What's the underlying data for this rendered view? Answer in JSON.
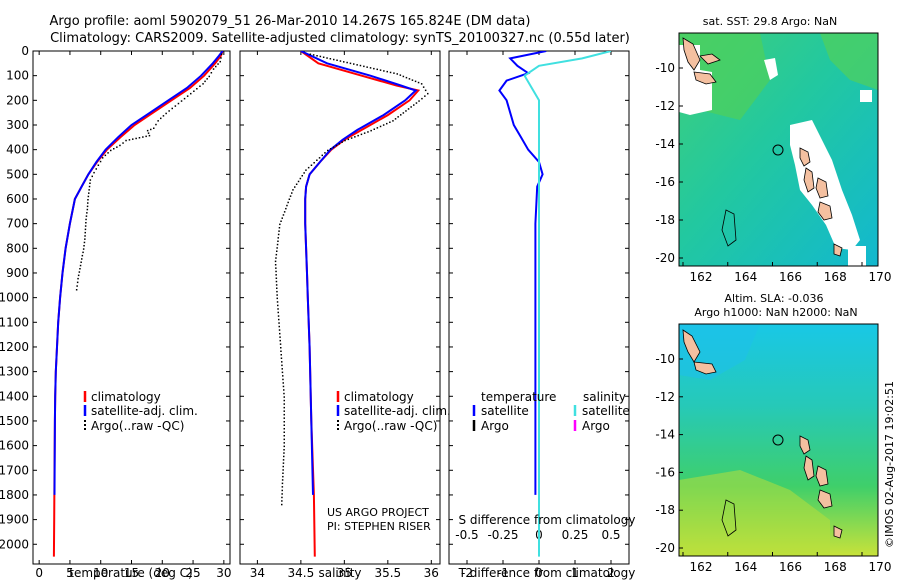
{
  "header": {
    "title_line1": "Argo profile: aoml 5902079_51 26-Mar-2010 14.267S 165.824E (DM data)",
    "title_line2": "Climatology: CARS2009. Satellite-adjusted climatology: synTS_20100327.nc (0.55d later)"
  },
  "footer": {
    "project": "US ARGO PROJECT",
    "pi": "PI: STEPHEN RISER",
    "watermark": "©IMOS 02-Aug-2017 19:02:51"
  },
  "colors": {
    "climatology": "#ff0000",
    "satellite": "#0000ff",
    "argo": "#000000",
    "sal_satellite": "#00e0e0",
    "sal_argo": "#ff00ff"
  },
  "chart_data": [
    {
      "id": "temperature",
      "type": "line",
      "xlabel": "temperature (deg C)",
      "ylabel": "",
      "xlim": [
        -1,
        31
      ],
      "ylim": [
        2080,
        0
      ],
      "xticks": [
        "0",
        "5",
        "10",
        "15",
        "20",
        "25",
        "30"
      ],
      "xtick_values": [
        0,
        5,
        10,
        15,
        20,
        25,
        30
      ],
      "yticks": [
        "0",
        "100",
        "200",
        "300",
        "400",
        "500",
        "600",
        "700",
        "800",
        "900",
        "1000",
        "1100",
        "1200",
        "1300",
        "1400",
        "1500",
        "1600",
        "1700",
        "1800",
        "1900",
        "2000"
      ],
      "ytick_values": [
        0,
        100,
        200,
        300,
        400,
        500,
        600,
        700,
        800,
        900,
        1000,
        1100,
        1200,
        1300,
        1400,
        1500,
        1600,
        1700,
        1800,
        1900,
        2000
      ],
      "legend": [
        "climatology",
        "satellite-adj. clim.",
        "Argo(..raw -QC)"
      ],
      "series": [
        {
          "name": "climatology",
          "style": "line",
          "color": "#ff0000",
          "x": [
            29.8,
            29.5,
            28.6,
            26.8,
            24.5,
            21.5,
            18.5,
            15.5,
            13.2,
            11,
            9.4,
            8,
            6.9,
            5.8,
            5,
            4.3,
            3.8,
            3.4,
            3.1,
            2.9,
            2.7,
            2.6,
            2.55,
            2.5,
            2.45,
            2.4
          ],
          "y": [
            0,
            20,
            50,
            100,
            150,
            200,
            250,
            300,
            350,
            400,
            450,
            500,
            550,
            600,
            700,
            800,
            900,
            1000,
            1100,
            1200,
            1300,
            1400,
            1500,
            1700,
            1900,
            2050
          ]
        },
        {
          "name": "satellite-adj. clim.",
          "style": "line",
          "color": "#0000ff",
          "x": [
            29.8,
            29.2,
            28.2,
            26.3,
            24,
            21,
            18,
            15,
            12.8,
            10.8,
            9.3,
            8,
            6.9,
            5.8,
            5,
            4.3,
            3.8,
            3.4,
            3.1,
            2.9,
            2.7,
            2.6,
            2.55,
            2.5
          ],
          "y": [
            0,
            20,
            50,
            100,
            150,
            200,
            250,
            300,
            350,
            400,
            450,
            500,
            550,
            600,
            700,
            800,
            900,
            1000,
            1100,
            1200,
            1300,
            1400,
            1500,
            1800
          ]
        },
        {
          "name": "Argo(..raw -QC)",
          "style": "dots",
          "color": "#000000",
          "x": [
            29.5,
            29.3,
            28.2,
            27.5,
            26.5,
            25,
            23.5,
            22,
            20.5,
            19.2,
            18.5,
            17.5,
            17.8,
            14,
            13,
            11.5,
            10.2,
            9.5,
            8.8,
            8.2,
            8,
            7.8,
            7.7,
            7.5,
            7.4,
            7.3,
            7.1,
            6.8,
            6.5,
            6.2,
            5.9
          ],
          "y": [
            10,
            40,
            70,
            100,
            130,
            160,
            190,
            220,
            250,
            280,
            310,
            320,
            340,
            360,
            380,
            400,
            430,
            460,
            490,
            520,
            560,
            600,
            640,
            680,
            720,
            760,
            800,
            840,
            880,
            920,
            980
          ]
        }
      ]
    },
    {
      "id": "salinity",
      "type": "line",
      "xlabel": "salinity",
      "ylabel": "",
      "xlim": [
        33.8,
        36.1
      ],
      "ylim": [
        2080,
        0
      ],
      "xticks": [
        "34",
        "34.5",
        "35",
        "35.5",
        "36"
      ],
      "xtick_values": [
        34,
        34.5,
        35,
        35.5,
        36
      ],
      "legend": [
        "climatology",
        "satellite-adj. clim.",
        "Argo(..raw -QC)"
      ],
      "series": [
        {
          "name": "climatology",
          "style": "line",
          "color": "#ff0000",
          "x": [
            34.5,
            34.7,
            35.2,
            35.6,
            35.85,
            35.75,
            35.5,
            35.2,
            35,
            34.85,
            34.72,
            34.6,
            34.56,
            34.55,
            34.55,
            34.56,
            34.57,
            34.58,
            34.6,
            34.62,
            34.65,
            34.66
          ],
          "y": [
            0,
            50,
            100,
            140,
            160,
            200,
            260,
            320,
            360,
            400,
            450,
            500,
            550,
            600,
            700,
            800,
            900,
            1000,
            1200,
            1500,
            1800,
            2050
          ]
        },
        {
          "name": "satellite-adj. clim.",
          "style": "line",
          "color": "#0000ff",
          "x": [
            34.5,
            34.8,
            35.3,
            35.65,
            35.82,
            35.7,
            35.45,
            35.15,
            34.98,
            34.84,
            34.72,
            34.6,
            34.56,
            34.55,
            34.55,
            34.56,
            34.57,
            34.58,
            34.6,
            34.62,
            34.64
          ],
          "y": [
            0,
            50,
            100,
            140,
            160,
            200,
            260,
            320,
            360,
            400,
            450,
            500,
            550,
            600,
            700,
            800,
            900,
            1000,
            1200,
            1500,
            1800
          ]
        },
        {
          "name": "Argo(..raw -QC)",
          "style": "dots",
          "color": "#000000",
          "x": [
            34.6,
            35.1,
            35.6,
            35.88,
            35.95,
            35.85,
            35.7,
            35.55,
            35.3,
            35,
            34.8,
            34.55,
            34.4,
            34.25,
            34.2,
            34.22,
            34.26,
            34.3,
            34.3,
            34.28,
            34.27
          ],
          "y": [
            10,
            50,
            90,
            130,
            170,
            200,
            240,
            280,
            320,
            360,
            400,
            480,
            560,
            700,
            850,
            1000,
            1200,
            1400,
            1600,
            1750,
            1850
          ]
        }
      ]
    },
    {
      "id": "difference",
      "type": "line",
      "xlabel_top": "S difference from climatology",
      "xticks_top": [
        "-0.5",
        "-0.25",
        "0",
        "0.25",
        "0.5"
      ],
      "xtick_values_top": [
        -0.5,
        -0.25,
        0,
        0.25,
        0.5
      ],
      "xlabel": "T difference from climatology",
      "xlim": [
        -2.5,
        2.5
      ],
      "ylim": [
        2080,
        0
      ],
      "xticks": [
        "-2",
        "-1",
        "0",
        "1",
        "2"
      ],
      "xtick_values": [
        -2,
        -1,
        0,
        1,
        2
      ],
      "legend_temperature_title": "temperature",
      "legend_salinity_title": "salinity",
      "legend_temperature": [
        "satellite",
        "Argo"
      ],
      "legend_salinity": [
        "satellite",
        "Argo"
      ],
      "series": [
        {
          "name": "T satellite",
          "style": "line",
          "color": "#0000ff",
          "x": [
            0.2,
            -0.8,
            -0.6,
            -0.3,
            -0.9,
            -1.1,
            -0.9,
            -0.8,
            -0.7,
            -0.5,
            -0.3,
            0,
            0.1,
            -0.05,
            -0.1,
            -0.1,
            -0.1,
            -0.1,
            -0.1,
            -0.1,
            -0.1
          ],
          "y": [
            0,
            30,
            60,
            90,
            120,
            160,
            200,
            250,
            300,
            350,
            400,
            450,
            500,
            550,
            700,
            900,
            1100,
            1300,
            1500,
            1700,
            1800
          ]
        },
        {
          "name": "S satellite",
          "style": "line",
          "color": "#40e0e0",
          "x": [
            0.5,
            0.3,
            0.0,
            -0.1,
            -0.05,
            0.0,
            0.0,
            0.0,
            0.0,
            0.0,
            0.0,
            0.0,
            0.0,
            0.0,
            0.0
          ],
          "y": [
            0,
            30,
            60,
            100,
            150,
            200,
            250,
            300,
            400,
            500,
            700,
            1000,
            1400,
            1800,
            2050
          ]
        }
      ]
    }
  ],
  "maps": {
    "top": {
      "title": "sat. SST: 29.8 Argo: NaN",
      "xticks": [
        "162",
        "164",
        "166",
        "168",
        "170"
      ],
      "yticks": [
        "-10",
        "-12",
        "-14",
        "-16",
        "-18",
        "-20"
      ]
    },
    "bottom": {
      "title_line1": "Altim. SLA: -0.036",
      "title_line2": "Argo h1000: NaN h2000: NaN",
      "xticks": [
        "162",
        "164",
        "166",
        "168",
        "170"
      ],
      "yticks": [
        "-10",
        "-12",
        "-14",
        "-16",
        "-18",
        "-20"
      ]
    }
  }
}
